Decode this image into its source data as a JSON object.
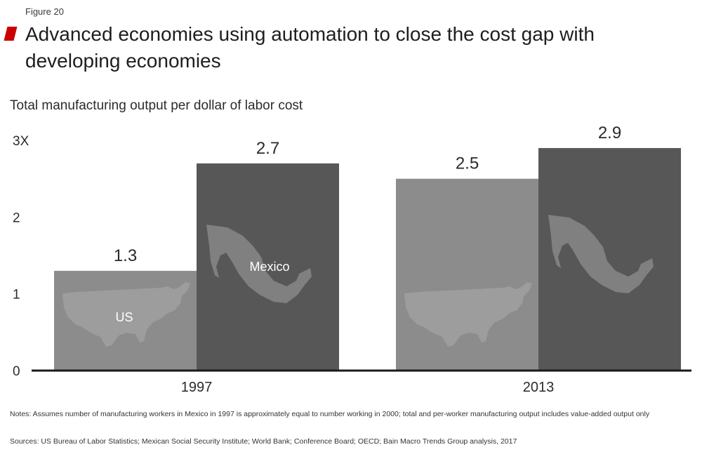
{
  "figure_label": "Figure 20",
  "title": "Advanced economies using automation to close the cost gap with developing economies",
  "colors": {
    "accent": "#cc0000",
    "us_bar": "#8c8c8c",
    "mexico_bar": "#575757",
    "map": "#a3a3a3"
  },
  "chart_data": {
    "type": "bar",
    "title": "Advanced economies using automation to close the cost gap with developing economies",
    "ylabel": "Total manufacturing output per dollar of labor cost",
    "xlabel": "",
    "categories": [
      "1997",
      "2013"
    ],
    "series": [
      {
        "name": "US",
        "values": [
          1.3,
          2.5
        ]
      },
      {
        "name": "Mexico",
        "values": [
          2.7,
          2.9
        ]
      }
    ],
    "data_labels": [
      [
        "1.3",
        "2.5"
      ],
      [
        "2.7",
        "2.9"
      ]
    ],
    "ylim": [
      0,
      3
    ],
    "yticks": [
      0,
      1,
      2,
      3
    ],
    "ytick_labels": [
      "0",
      "1",
      "2",
      "3X"
    ],
    "grid": false,
    "legend": "none"
  },
  "notes": "Notes: Assumes number of manufacturing workers in Mexico in 1997 is approximately equal to number working in 2000; total and per-worker manufacturing output includes value-added output only",
  "sources": "Sources: US Bureau of Labor Statistics; Mexican Social Security Institute; World Bank; Conference Board; OECD; Bain Macro Trends Group analysis, 2017"
}
